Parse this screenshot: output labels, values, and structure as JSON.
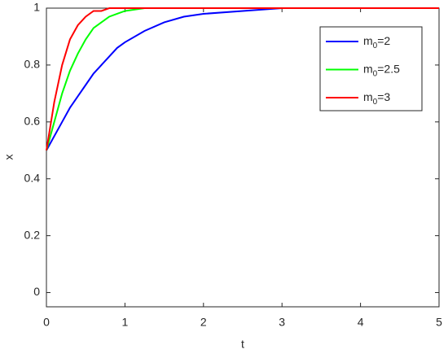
{
  "chart_data": {
    "type": "line",
    "x_label": "t",
    "y_label": "x",
    "x": [
      0,
      0.1,
      0.2,
      0.3,
      0.4,
      0.5,
      0.6,
      0.7,
      0.8,
      0.9,
      1,
      1.25,
      1.5,
      1.75,
      2,
      2.5,
      3,
      3.5,
      4,
      4.5,
      5
    ],
    "series": [
      {
        "name": "m0=2",
        "color": "#0000ff",
        "values": [
          0.5,
          0.55,
          0.6,
          0.65,
          0.69,
          0.73,
          0.77,
          0.8,
          0.83,
          0.86,
          0.88,
          0.92,
          0.95,
          0.97,
          0.98,
          0.99,
          1,
          1,
          1,
          1,
          1
        ]
      },
      {
        "name": "m0=2.5",
        "color": "#00ff00",
        "values": [
          0.5,
          0.6,
          0.7,
          0.78,
          0.84,
          0.89,
          0.93,
          0.95,
          0.97,
          0.98,
          0.99,
          1,
          1,
          1,
          1,
          1,
          1,
          1,
          1,
          1,
          1
        ]
      },
      {
        "name": "m0=3",
        "color": "#ff0000",
        "values": [
          0.5,
          0.67,
          0.8,
          0.89,
          0.94,
          0.97,
          0.99,
          0.99,
          1,
          1,
          1,
          1,
          1,
          1,
          1,
          1,
          1,
          1,
          1,
          1,
          1
        ]
      }
    ],
    "xlim": [
      0,
      5
    ],
    "xticks": [
      0,
      1,
      2,
      3,
      4,
      5
    ],
    "ylim": [
      -0.05,
      1
    ],
    "yticks": [
      0,
      0.2,
      0.4,
      0.6,
      0.8,
      1
    ],
    "legend": "upper right"
  }
}
